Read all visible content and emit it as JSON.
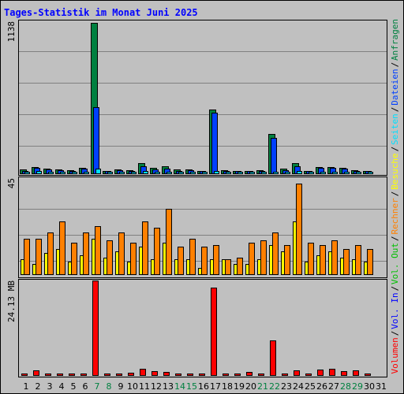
{
  "title": "Tages-Statistik im Monat Juni 2025",
  "colors": {
    "background": "#c0c0c0",
    "title": "#0000ff",
    "grid": "#808080",
    "anfragen": "#008040",
    "dateien": "#0040ff",
    "seiten": "#00e0ff",
    "besuche": "#ffff00",
    "rechner": "#ff8000",
    "vol_in": "#0000ff",
    "vol_out": "#00c000",
    "volumen": "#ff0000",
    "weekday_label": "#000000",
    "weekend_label": "#008040"
  },
  "chart_data": [
    {
      "type": "bar",
      "id": "hits",
      "ymax_label": "1138",
      "ylim": [
        0,
        1138
      ],
      "grid": true,
      "legend_right": [
        "Anfragen",
        "Dateien",
        "Seiten"
      ],
      "categories": [
        "1",
        "2",
        "3",
        "4",
        "5",
        "6",
        "7",
        "8",
        "9",
        "10",
        "11",
        "12",
        "13",
        "14",
        "15",
        "16",
        "17",
        "18",
        "19",
        "20",
        "21",
        "22",
        "23",
        "24",
        "25",
        "26",
        "27",
        "28",
        "29",
        "30",
        "31"
      ],
      "series": [
        {
          "name": "Anfragen",
          "values": [
            30,
            45,
            35,
            30,
            25,
            40,
            1138,
            20,
            30,
            25,
            80,
            40,
            55,
            30,
            30,
            20,
            480,
            25,
            20,
            20,
            25,
            295,
            35,
            80,
            20,
            45,
            45,
            40,
            25,
            20,
            0
          ]
        },
        {
          "name": "Dateien",
          "values": [
            20,
            40,
            30,
            25,
            20,
            35,
            500,
            15,
            25,
            20,
            55,
            30,
            35,
            20,
            25,
            15,
            460,
            20,
            15,
            15,
            20,
            270,
            25,
            55,
            15,
            40,
            40,
            35,
            20,
            15,
            0
          ]
        },
        {
          "name": "Seiten",
          "values": [
            8,
            15,
            12,
            10,
            8,
            12,
            35,
            8,
            10,
            8,
            15,
            10,
            12,
            8,
            10,
            6,
            15,
            10,
            8,
            8,
            10,
            12,
            10,
            18,
            6,
            14,
            14,
            12,
            10,
            8,
            0
          ]
        }
      ],
      "weekend_days": [
        "7",
        "8",
        "14",
        "15",
        "21",
        "22",
        "28",
        "29"
      ]
    },
    {
      "type": "bar",
      "id": "visits",
      "ymax_label": "45",
      "ylim": [
        0,
        45
      ],
      "grid": true,
      "legend_right": [
        "Besuche",
        "Rechner"
      ],
      "categories": [
        "1",
        "2",
        "3",
        "4",
        "5",
        "6",
        "7",
        "8",
        "9",
        "10",
        "11",
        "12",
        "13",
        "14",
        "15",
        "16",
        "17",
        "18",
        "19",
        "20",
        "21",
        "22",
        "23",
        "24",
        "25",
        "26",
        "27",
        "28",
        "29",
        "30",
        "31"
      ],
      "series": [
        {
          "name": "Besuche",
          "values": [
            7,
            5,
            10,
            12,
            6,
            9,
            17,
            8,
            11,
            6,
            13,
            7,
            15,
            7,
            7,
            3,
            7,
            7,
            5,
            5,
            7,
            14,
            11,
            25,
            6,
            9,
            11,
            8,
            7,
            6,
            0
          ]
        },
        {
          "name": "Rechner",
          "values": [
            17,
            17,
            20,
            25,
            15,
            20,
            23,
            16,
            20,
            15,
            25,
            22,
            31,
            13,
            17,
            13,
            14,
            7,
            8,
            15,
            16,
            20,
            14,
            43,
            15,
            14,
            16,
            12,
            14,
            12,
            0
          ]
        }
      ]
    },
    {
      "type": "bar",
      "id": "volume",
      "ymax_label": "24.13 MB",
      "ylim": [
        0,
        24.13
      ],
      "grid": false,
      "legend_right": [
        "Volumen",
        "Vol. In",
        "Vol. Out"
      ],
      "categories": [
        "1",
        "2",
        "3",
        "4",
        "5",
        "6",
        "7",
        "8",
        "9",
        "10",
        "11",
        "12",
        "13",
        "14",
        "15",
        "16",
        "17",
        "18",
        "19",
        "20",
        "21",
        "22",
        "23",
        "24",
        "25",
        "26",
        "27",
        "28",
        "29",
        "30",
        "31"
      ],
      "series": [
        {
          "name": "Volumen",
          "values": [
            0.3,
            1.3,
            0.4,
            0.5,
            0.4,
            0.4,
            24.13,
            0.2,
            0.4,
            0.6,
            1.7,
            1.0,
            0.9,
            0.4,
            0.4,
            0.3,
            22.4,
            0.2,
            0.3,
            0.8,
            0.5,
            8.8,
            0.2,
            1.2,
            0.3,
            1.5,
            1.7,
            1.0,
            1.2,
            0.4,
            0
          ]
        }
      ]
    }
  ]
}
